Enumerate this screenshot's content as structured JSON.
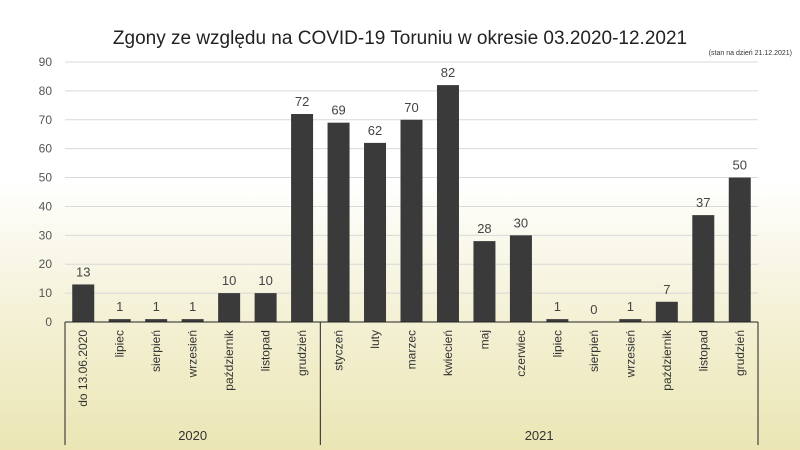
{
  "chart_data": {
    "type": "bar",
    "title": "Zgony ze względu na COVID-19 Toruniu w okresie 03.2020-12.2021",
    "note": "(stan na dzień 21.12.2021)",
    "ylim": [
      0,
      90
    ],
    "yticks": [
      0,
      10,
      20,
      30,
      40,
      50,
      60,
      70,
      80,
      90
    ],
    "grid": true,
    "bar_color": "#3a3a3a",
    "categories": [
      "do 13.06.2020",
      "lipiec",
      "sierpień",
      "wrzesień",
      "październik",
      "listopad",
      "grudzień",
      "styczeń",
      "luty",
      "marzec",
      "kwiecień",
      "maj",
      "czerwiec",
      "lipiec",
      "sierpień",
      "wrzesień",
      "październik",
      "listopad",
      "grudzień"
    ],
    "values": [
      13,
      1,
      1,
      1,
      10,
      10,
      72,
      69,
      62,
      70,
      82,
      28,
      30,
      1,
      0,
      1,
      7,
      37,
      50
    ],
    "groups": [
      {
        "label": "2020",
        "count": 7
      },
      {
        "label": "2021",
        "count": 12
      }
    ]
  }
}
